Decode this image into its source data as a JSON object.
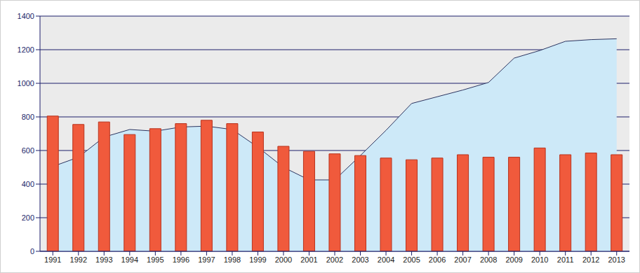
{
  "chart_data": {
    "type": "bar",
    "categories": [
      "1991",
      "1992",
      "1993",
      "1994",
      "1995",
      "1996",
      "1997",
      "1998",
      "1999",
      "2000",
      "2001",
      "2002",
      "2003",
      "2004",
      "2005",
      "2006",
      "2007",
      "2008",
      "2009",
      "2010",
      "2011",
      "2012",
      "2013"
    ],
    "series": [
      {
        "type": "area",
        "color": "#cde9f8",
        "values": [
          505,
          560,
          680,
          725,
          715,
          740,
          745,
          725,
          620,
          500,
          425,
          425,
          570,
          720,
          880,
          920,
          960,
          1005,
          1150,
          1195,
          1250,
          1260,
          1265
        ]
      },
      {
        "type": "bar",
        "color": "#f05a3c",
        "values": [
          805,
          755,
          770,
          695,
          730,
          760,
          780,
          760,
          710,
          625,
          595,
          580,
          570,
          555,
          545,
          555,
          575,
          560,
          560,
          615,
          575,
          585,
          575
        ]
      }
    ],
    "ylim": [
      0,
      1400
    ],
    "yticks": [
      0,
      200,
      400,
      600,
      800,
      1000,
      1200,
      1400
    ],
    "grid": true
  }
}
